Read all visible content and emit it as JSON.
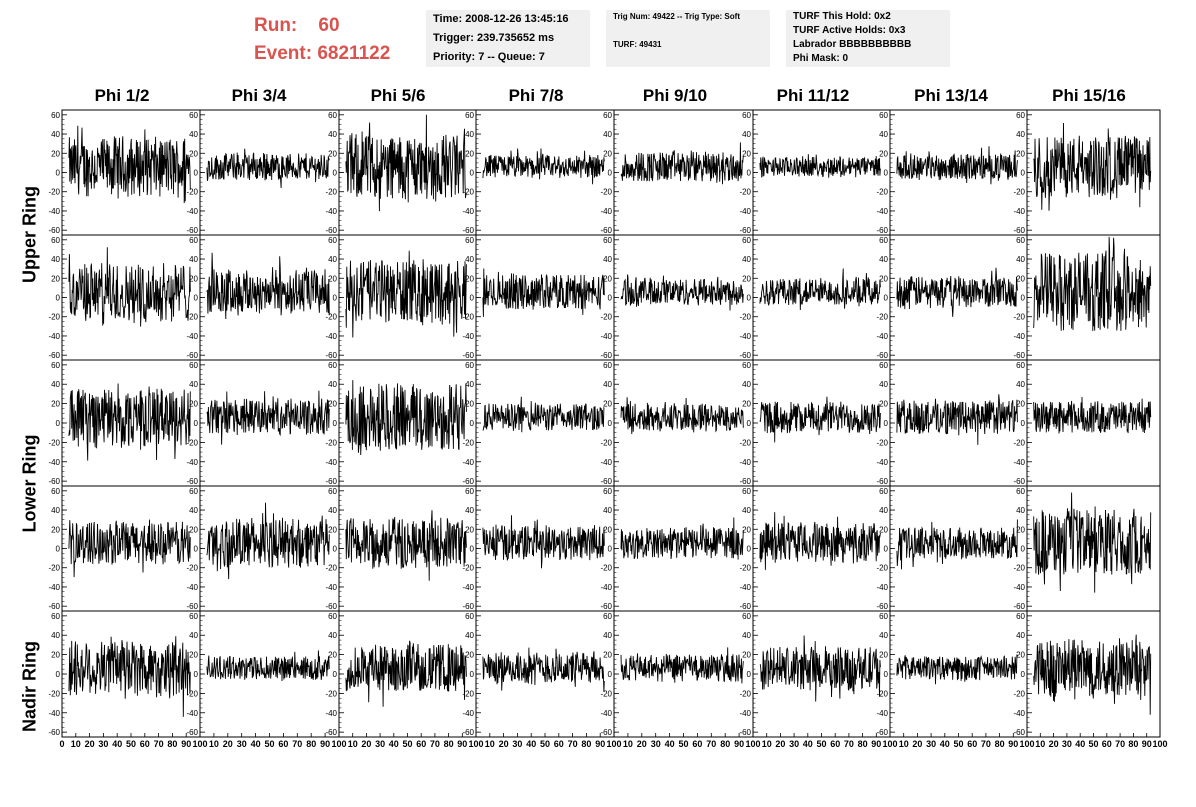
{
  "header": {
    "run_label": "Run:",
    "run_value": "60",
    "event_label": "Event:",
    "event_value": "6821122"
  },
  "info_box_1": {
    "time": "Time: 2008-12-26 13:45:16",
    "trigger": "Trigger: 239.735652 ms",
    "priority": "Priority: 7 -- Queue: 7"
  },
  "info_box_2": {
    "trig": "Trig Num: 49422 -- Trig Type: Soft",
    "turf": "TURF: 49431"
  },
  "info_box_3": {
    "hold": "TURF This Hold: 0x2",
    "active": "TURF Active Holds: 0x3",
    "labrador": "Labrador BBBBBBBBBB",
    "phimask": "Phi Mask: 0"
  },
  "columns": [
    "Phi 1/2",
    "Phi 3/4",
    "Phi 5/6",
    "Phi 7/8",
    "Phi 9/10",
    "Phi 11/12",
    "Phi 13/14",
    "Phi 15/16"
  ],
  "ring_labels": [
    "Upper Ring",
    "Lower Ring",
    "Nadir Ring"
  ],
  "colors": {
    "trace": "#000000",
    "header_red": "#d9534f",
    "info_bg": "#f0f0f0"
  },
  "chart_data": {
    "type": "line",
    "panel_rows": 5,
    "panel_cols": 8,
    "xlim": [
      0,
      100
    ],
    "ylim": [
      -65,
      65
    ],
    "y_ticks": [
      -60,
      -40,
      -20,
      0,
      20,
      40,
      60
    ],
    "x_tick_labels": [
      "0",
      "10",
      "20",
      "30",
      "40",
      "50",
      "60",
      "70",
      "80",
      "90",
      "100"
    ],
    "samples_per_trace": 260,
    "panel_amplitudes": [
      [
        30,
        14,
        34,
        12,
        16,
        10,
        13,
        32
      ],
      [
        30,
        24,
        32,
        18,
        14,
        14,
        16,
        40
      ],
      [
        30,
        18,
        36,
        14,
        14,
        16,
        18,
        16
      ],
      [
        22,
        26,
        26,
        18,
        16,
        20,
        16,
        34
      ],
      [
        30,
        12,
        24,
        16,
        14,
        22,
        12,
        30
      ]
    ]
  }
}
